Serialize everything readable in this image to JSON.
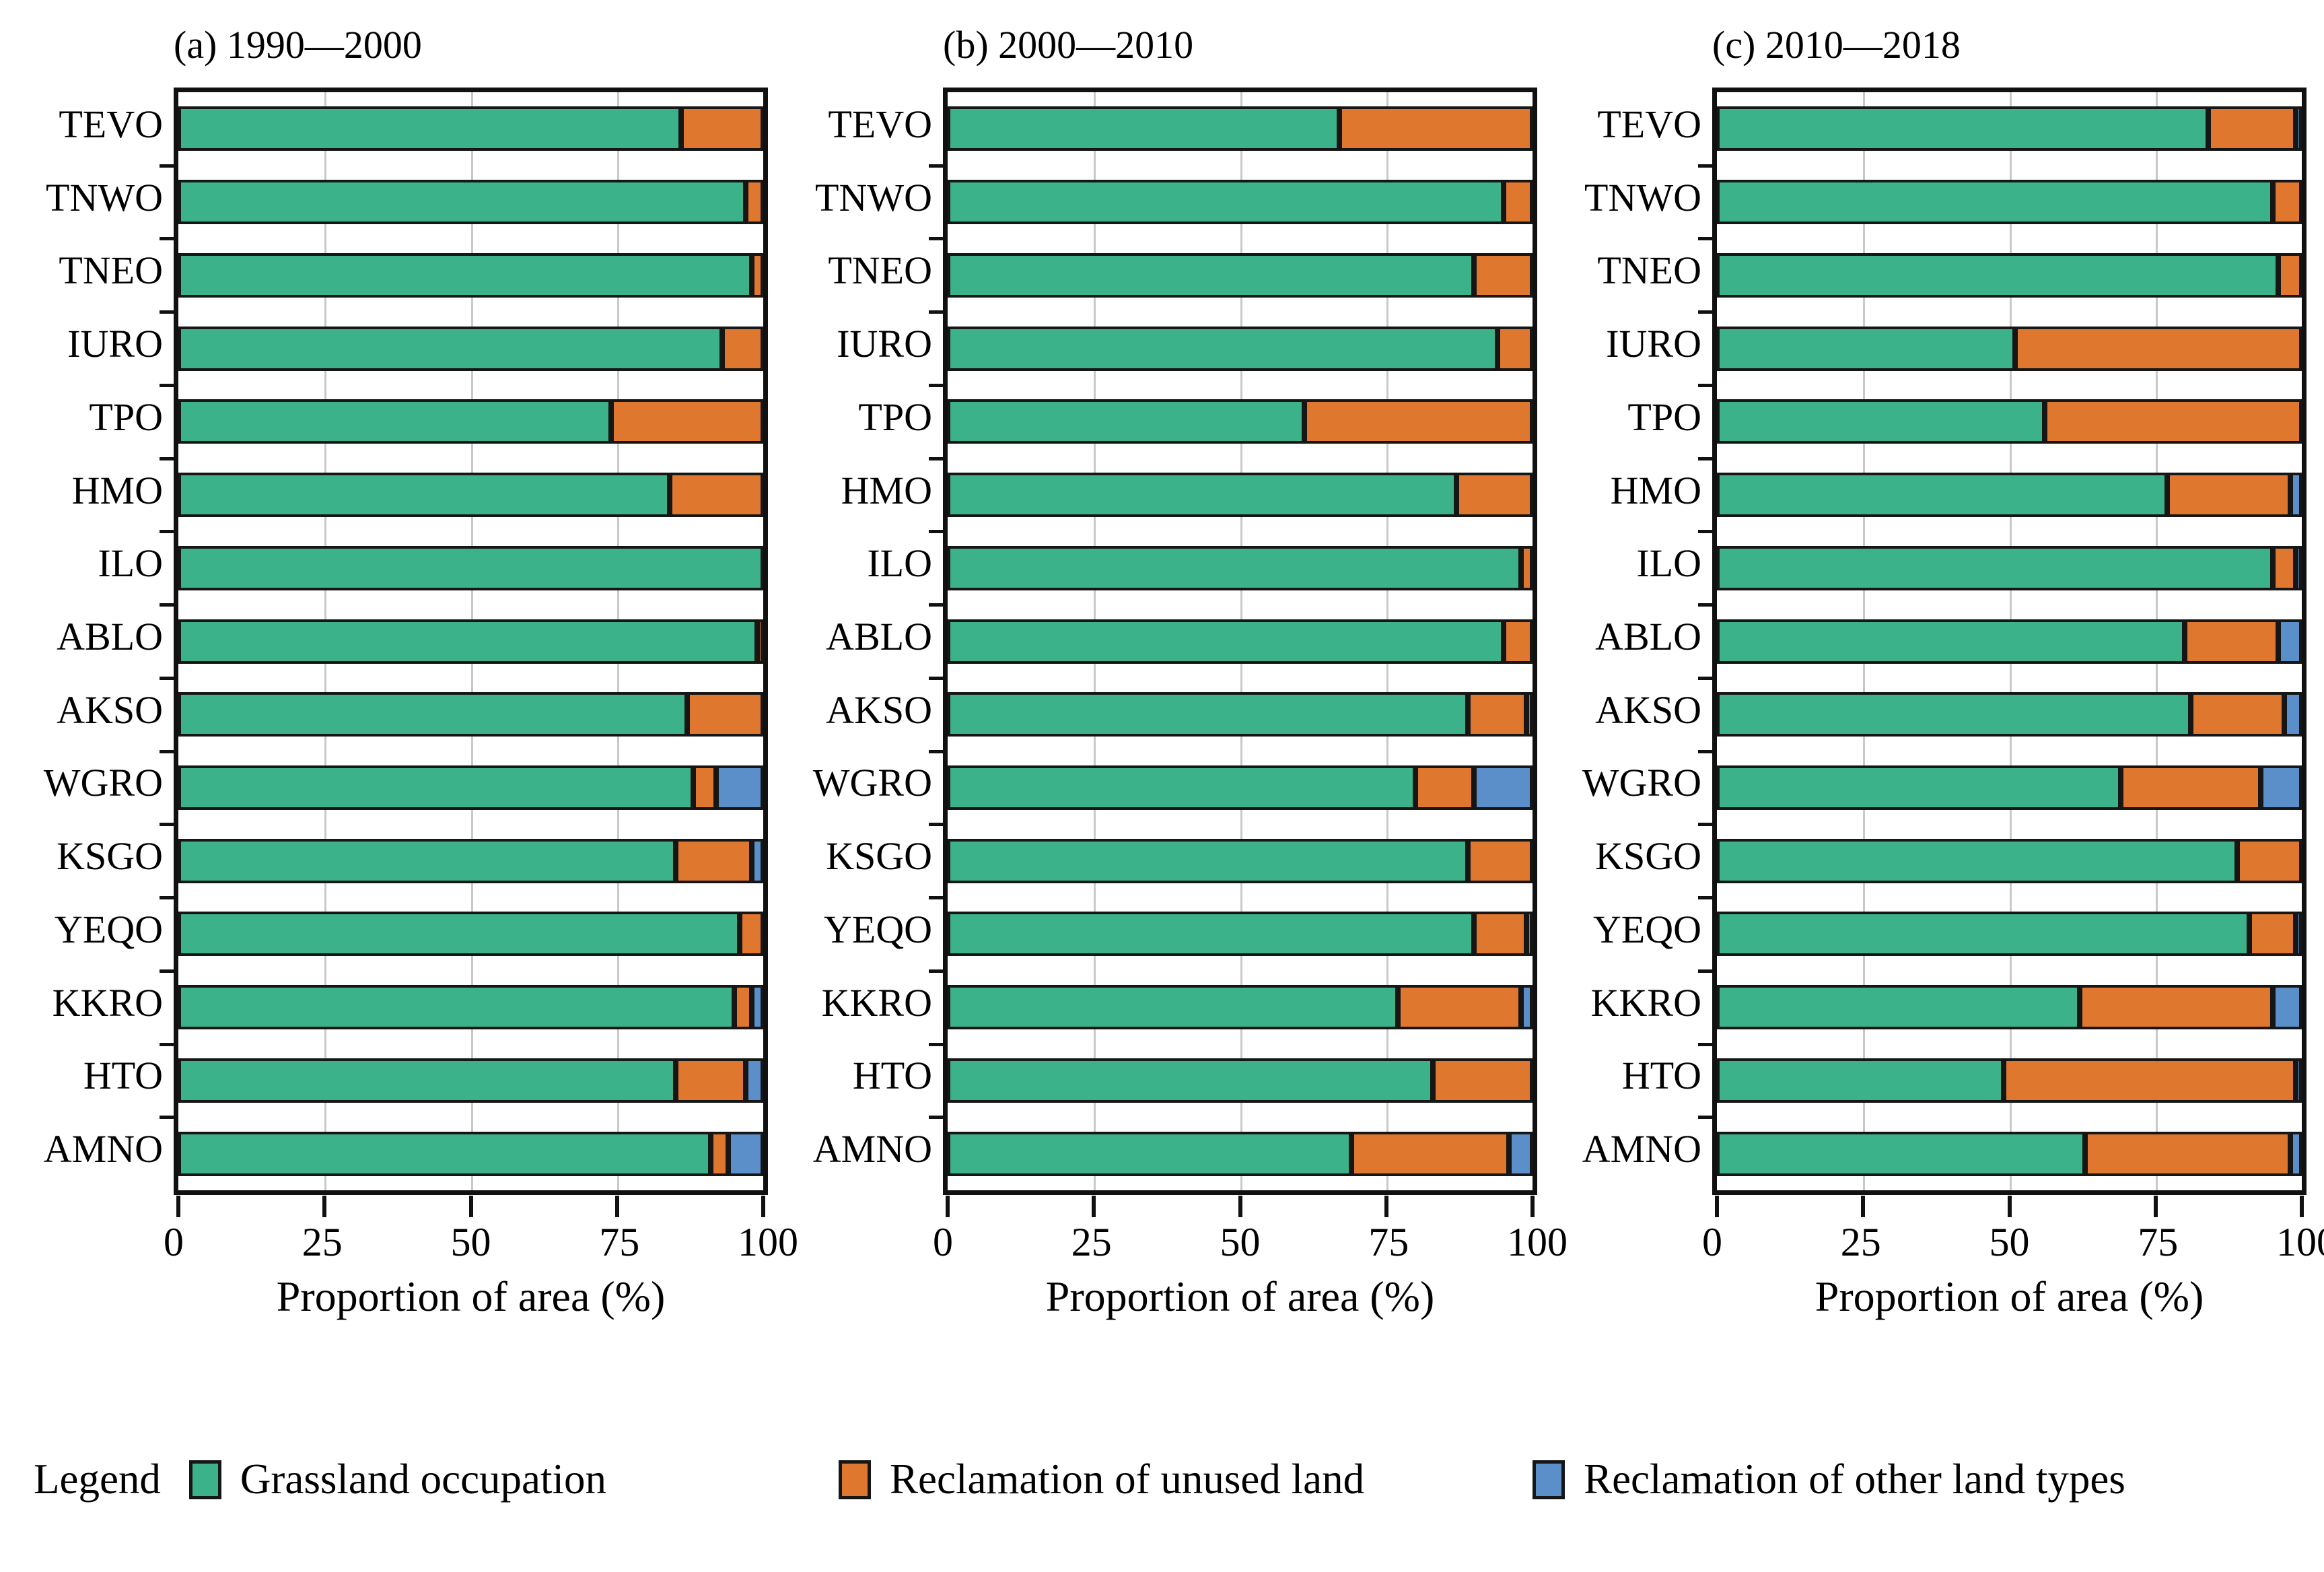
{
  "figure": {
    "titles": [
      "(a) 1990—2000",
      "(b) 2000—2010",
      "(c) 2010—2018"
    ],
    "xlabel": "Proportion of area (%)",
    "legend": {
      "label": "Legend",
      "items": [
        {
          "name": "Grassland occupation",
          "color": "#3CB28A"
        },
        {
          "name": "Reclamation of unused land",
          "color": "#E0772E"
        },
        {
          "name": "Reclamation of other land types",
          "color": "#5B8FC9"
        }
      ]
    },
    "colors": {
      "grassland": "#3CB28A",
      "unused_land": "#E0772E",
      "other_land": "#5B8FC9",
      "gridline": "#c9c9c9",
      "axis": "#111111"
    }
  },
  "chart_data": [
    {
      "type": "bar",
      "orientation": "horizontal",
      "stacked": true,
      "title": "(a) 1990—2000",
      "xlabel": "Proportion of area (%)",
      "xlim": [
        0,
        100
      ],
      "x_ticks": [
        0,
        25,
        50,
        75,
        100
      ],
      "grid": "vertical",
      "categories": [
        "TEVO",
        "TNWO",
        "TNEO",
        "IURO",
        "TPO",
        "HMO",
        "ILO",
        "ABLO",
        "AKSO",
        "WGRO",
        "KSGO",
        "YEQO",
        "KKRO",
        "HTO",
        "AMNO"
      ],
      "series": [
        {
          "name": "Grassland occupation",
          "color": "#3CB28A",
          "values": [
            86,
            97,
            98,
            93,
            74,
            84,
            100,
            99,
            87,
            88,
            85,
            96,
            95,
            85,
            91
          ]
        },
        {
          "name": "Reclamation of unused land",
          "color": "#E0772E",
          "values": [
            14,
            3,
            2,
            7,
            26,
            16,
            0,
            1,
            13,
            4,
            13,
            4,
            3,
            12,
            3
          ]
        },
        {
          "name": "Reclamation of other land types",
          "color": "#5B8FC9",
          "values": [
            0,
            0,
            0,
            0,
            0,
            0,
            0,
            0,
            0,
            8,
            2,
            0,
            2,
            3,
            6
          ]
        }
      ]
    },
    {
      "type": "bar",
      "orientation": "horizontal",
      "stacked": true,
      "title": "(b) 2000—2010",
      "xlabel": "Proportion of area (%)",
      "xlim": [
        0,
        100
      ],
      "x_ticks": [
        0,
        25,
        50,
        75,
        100
      ],
      "grid": "vertical",
      "categories": [
        "TEVO",
        "TNWO",
        "TNEO",
        "IURO",
        "TPO",
        "HMO",
        "ILO",
        "ABLO",
        "AKSO",
        "WGRO",
        "KSGO",
        "YEQO",
        "KKRO",
        "HTO",
        "AMNO"
      ],
      "series": [
        {
          "name": "Grassland occupation",
          "color": "#3CB28A",
          "values": [
            67,
            95,
            90,
            94,
            61,
            87,
            98,
            95,
            89,
            80,
            89,
            90,
            77,
            83,
            69
          ]
        },
        {
          "name": "Reclamation of unused land",
          "color": "#E0772E",
          "values": [
            33,
            5,
            10,
            6,
            39,
            13,
            2,
            5,
            10,
            10,
            11,
            9,
            21,
            17,
            27
          ]
        },
        {
          "name": "Reclamation of other land types",
          "color": "#5B8FC9",
          "values": [
            0,
            0,
            0,
            0,
            0,
            0,
            0,
            0,
            1,
            10,
            0,
            1,
            2,
            0,
            4
          ]
        }
      ]
    },
    {
      "type": "bar",
      "orientation": "horizontal",
      "stacked": true,
      "title": "(c) 2010—2018",
      "xlabel": "Proportion of area (%)",
      "xlim": [
        0,
        100
      ],
      "x_ticks": [
        0,
        25,
        50,
        75,
        100
      ],
      "grid": "vertical",
      "categories": [
        "TEVO",
        "TNWO",
        "TNEO",
        "IURO",
        "TPO",
        "HMO",
        "ILO",
        "ABLO",
        "AKSO",
        "WGRO",
        "KSGO",
        "YEQO",
        "KKRO",
        "HTO",
        "AMNO"
      ],
      "series": [
        {
          "name": "Grassland occupation",
          "color": "#3CB28A",
          "values": [
            84,
            95,
            96,
            51,
            56,
            77,
            95,
            80,
            81,
            69,
            89,
            91,
            62,
            49,
            63
          ]
        },
        {
          "name": "Reclamation of unused land",
          "color": "#E0772E",
          "values": [
            15,
            5,
            4,
            49,
            44,
            21,
            4,
            16,
            16,
            24,
            11,
            8,
            33,
            50,
            35
          ]
        },
        {
          "name": "Reclamation of other land types",
          "color": "#5B8FC9",
          "values": [
            1,
            0,
            0,
            0,
            0,
            2,
            1,
            4,
            3,
            7,
            0,
            1,
            5,
            1,
            2
          ]
        }
      ]
    }
  ]
}
